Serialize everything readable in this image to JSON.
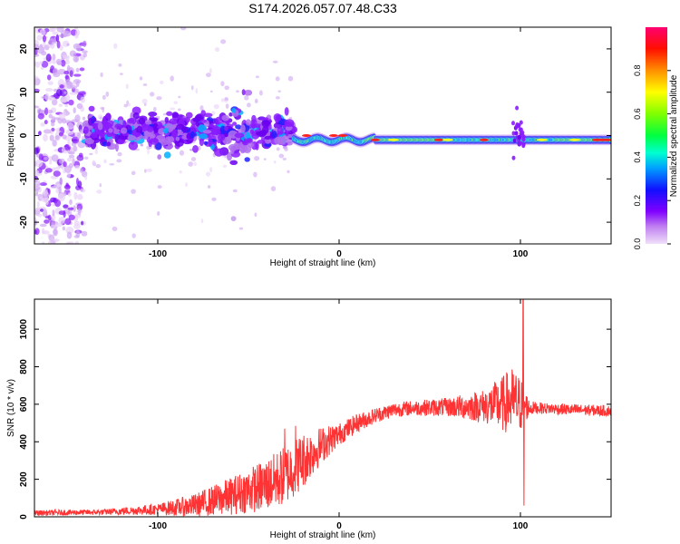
{
  "chart_data": [
    {
      "type": "heatmap",
      "title": "S174.2026.057.07.48.C33",
      "xlabel": "Height of straight line (km)",
      "ylabel": "Frequency (Hz)",
      "xlim": [
        -168,
        150
      ],
      "ylim": [
        -25,
        25
      ],
      "xticks": [
        -100,
        0,
        100
      ],
      "xtick_labels": [
        "-100",
        "0",
        "100"
      ],
      "yticks": [
        -20,
        -10,
        0,
        10,
        20
      ],
      "ytick_labels": [
        "-20",
        "-10",
        "0",
        "10",
        "20"
      ],
      "colorbar": {
        "label": "Normalized spectral amplitude",
        "range": [
          0,
          1
        ],
        "ticks": [
          0.0,
          0.2,
          0.4,
          0.6,
          0.8
        ],
        "tick_labels": [
          "0.0",
          "0.2",
          "0.4",
          "0.6",
          "0.8"
        ],
        "colormap": [
          "#e3c6f2",
          "#8000ff",
          "#0000ff",
          "#00c8ff",
          "#00ff80",
          "#80ff00",
          "#ffff00",
          "#ff8000",
          "#ff0000",
          "#ff0060"
        ]
      },
      "regions": [
        {
          "name": "noise",
          "x": [
            -168,
            -140
          ],
          "freq_spread": 25,
          "amplitude": 0.1
        },
        {
          "name": "scattered",
          "x": [
            -140,
            -25
          ],
          "freq_spread": 5,
          "amplitude": 0.25
        },
        {
          "name": "line",
          "x": [
            -25,
            150
          ],
          "freq_center": -1,
          "amplitude": 0.9
        }
      ]
    },
    {
      "type": "line",
      "xlabel": "Height of straight line (km)",
      "ylabel": "SNR (10 * v/v)",
      "xlim": [
        -168,
        150
      ],
      "ylim": [
        0,
        1160
      ],
      "xticks": [
        -100,
        0,
        100
      ],
      "xtick_labels": [
        "-100",
        "0",
        "100"
      ],
      "yticks": [
        0,
        200,
        400,
        600,
        800,
        1000
      ],
      "ytick_labels": [
        "0",
        "200",
        "400",
        "600",
        "800",
        "1000"
      ],
      "color": "#ff3333",
      "envelope": {
        "x": [
          -168,
          -130,
          -100,
          -80,
          -60,
          -40,
          -30,
          -20,
          -10,
          0,
          10,
          20,
          30,
          40,
          60,
          80,
          90,
          95,
          100,
          105,
          110,
          130,
          150
        ],
        "y": [
          20,
          25,
          40,
          60,
          110,
          170,
          220,
          300,
          380,
          440,
          500,
          540,
          570,
          580,
          585,
          590,
          600,
          620,
          600,
          580,
          580,
          570,
          565
        ],
        "amplitude": [
          15,
          15,
          30,
          60,
          100,
          140,
          160,
          150,
          100,
          60,
          50,
          40,
          40,
          40,
          50,
          90,
          150,
          180,
          150,
          40,
          30,
          30,
          30
        ]
      },
      "spikes": [
        {
          "x": 101.5,
          "y": 1160
        },
        {
          "x": 102,
          "y": 60
        },
        {
          "x": -30,
          "y": 470
        },
        {
          "x": -24,
          "y": 485
        }
      ]
    }
  ]
}
